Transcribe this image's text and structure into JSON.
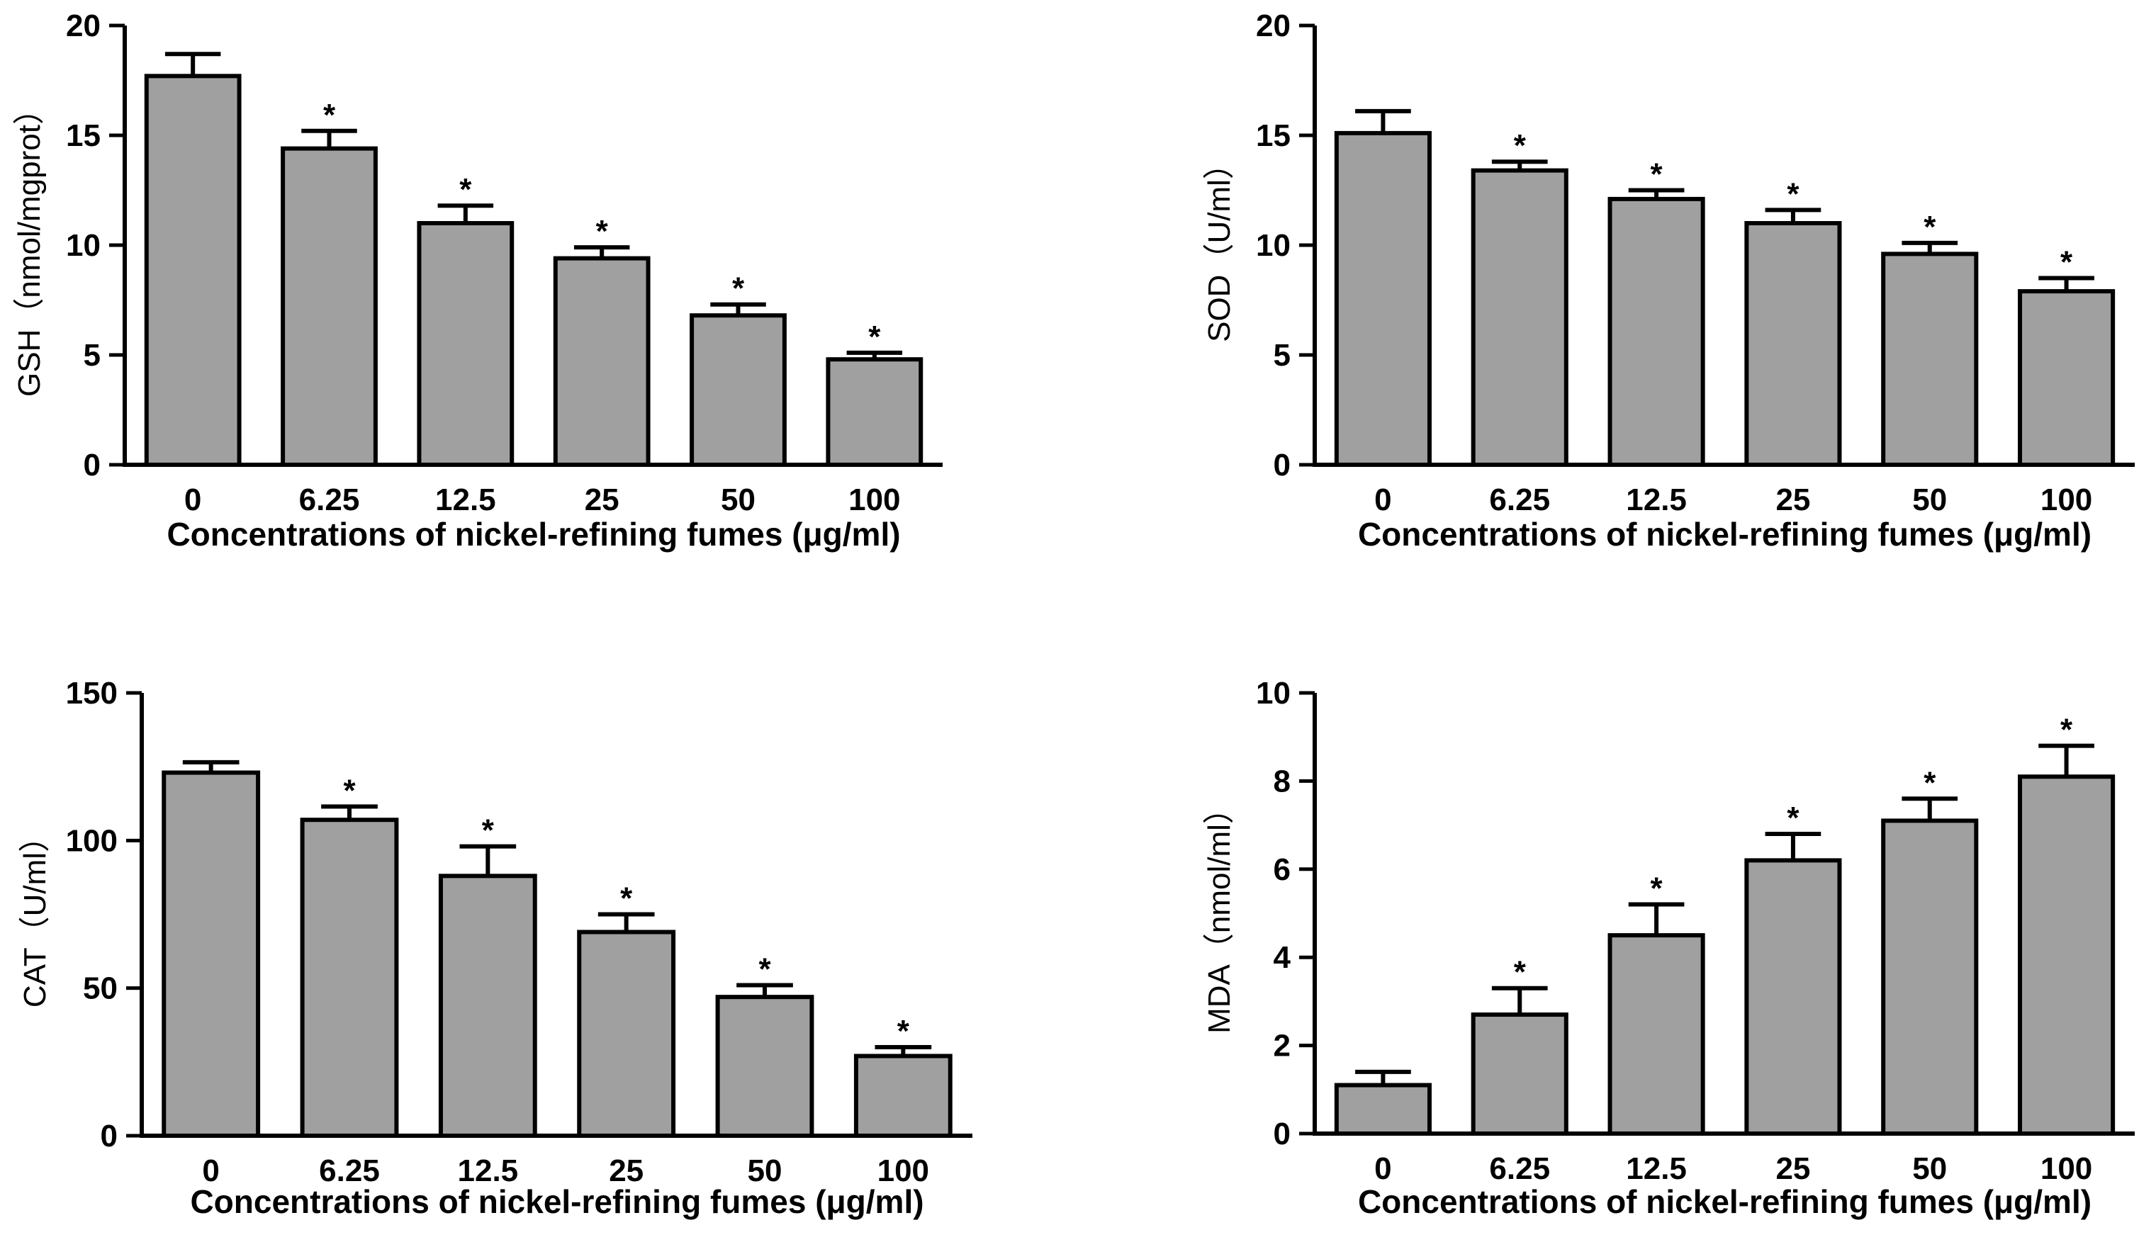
{
  "chart_data": [
    {
      "type": "bar",
      "title": "",
      "xlabel": "Concentrations of nickel-refining fumes (μg/ml)",
      "ylabel": "GSH（nmol/mgprot）",
      "categories": [
        "0",
        "6.25",
        "12.5",
        "25",
        "50",
        "100"
      ],
      "values": [
        17.7,
        14.4,
        11.0,
        9.4,
        6.8,
        4.8
      ],
      "errors": [
        1.0,
        0.8,
        0.8,
        0.5,
        0.5,
        0.3
      ],
      "significance": [
        "",
        "*",
        "*",
        "*",
        "*",
        "*"
      ],
      "ylim": [
        0,
        20
      ],
      "yticks": [
        "0",
        "5",
        "10",
        "15",
        "20"
      ],
      "bar_color": "#a0a0a0"
    },
    {
      "type": "bar",
      "title": "",
      "xlabel": "Concentrations of nickel-refining fumes (μg/ml)",
      "ylabel": "SOD（U/ml）",
      "categories": [
        "0",
        "6.25",
        "12.5",
        "25",
        "50",
        "100"
      ],
      "values": [
        15.1,
        13.4,
        12.1,
        11.0,
        9.6,
        7.9
      ],
      "errors": [
        1.0,
        0.4,
        0.4,
        0.6,
        0.5,
        0.6
      ],
      "significance": [
        "",
        "*",
        "*",
        "*",
        "*",
        "*"
      ],
      "ylim": [
        0,
        20
      ],
      "yticks": [
        "0",
        "5",
        "10",
        "15",
        "20"
      ],
      "bar_color": "#a0a0a0"
    },
    {
      "type": "bar",
      "title": "",
      "xlabel": "Concentrations of nickel-refining fumes (μg/ml)",
      "ylabel": "CAT（U/ml）",
      "categories": [
        "0",
        "6.25",
        "12.5",
        "25",
        "50",
        "100"
      ],
      "values": [
        123,
        107,
        88,
        69,
        47,
        27
      ],
      "errors": [
        3.5,
        4.5,
        10,
        6,
        4,
        3
      ],
      "significance": [
        "",
        "*",
        "*",
        "*",
        "*",
        "*"
      ],
      "ylim": [
        0,
        150
      ],
      "yticks": [
        "0",
        "50",
        "100",
        "150"
      ],
      "bar_color": "#a0a0a0"
    },
    {
      "type": "bar",
      "title": "",
      "xlabel": "Concentrations of nickel-refining fumes (μg/ml)",
      "ylabel": "MDA（nmol/ml）",
      "categories": [
        "0",
        "6.25",
        "12.5",
        "25",
        "50",
        "100"
      ],
      "values": [
        1.1,
        2.7,
        4.5,
        6.2,
        7.1,
        8.1
      ],
      "errors": [
        0.3,
        0.6,
        0.7,
        0.6,
        0.5,
        0.7
      ],
      "significance": [
        "",
        "*",
        "*",
        "*",
        "*",
        "*"
      ],
      "ylim": [
        0,
        10
      ],
      "yticks": [
        "0",
        "2",
        "4",
        "6",
        "8",
        "10"
      ],
      "bar_color": "#a0a0a0"
    }
  ]
}
